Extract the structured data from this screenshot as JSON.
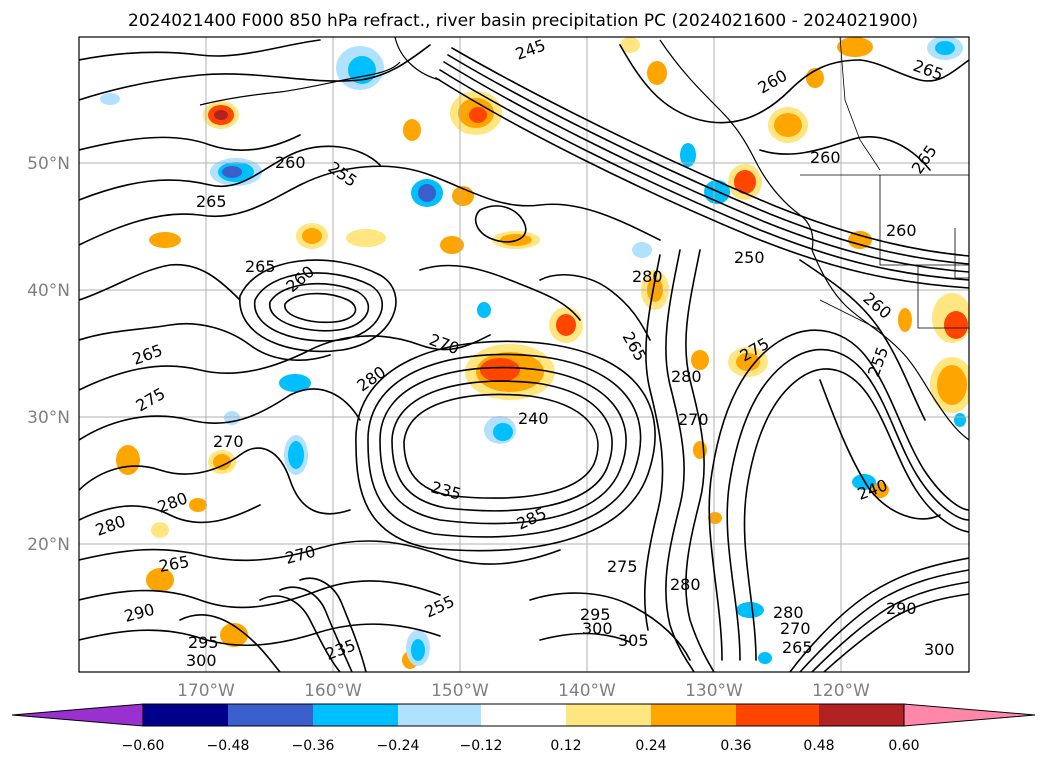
{
  "title": "2024021400 F000 850 hPa refract., river basin precipitation PC (2024021600 - 2024021900)",
  "lat_labels": [
    "50°N",
    "40°N",
    "30°N",
    "20°N"
  ],
  "lon_labels": [
    "170°W",
    "160°W",
    "150°W",
    "140°W",
    "130°W",
    "120°W"
  ],
  "colorbar": {
    "ticks": [
      "−0.60",
      "−0.48",
      "−0.36",
      "−0.24",
      "−0.12",
      "0.12",
      "0.24",
      "0.36",
      "0.48",
      "0.60"
    ],
    "colors": [
      "#9b30d0",
      "#00008b",
      "#3a5fcd",
      "#00bfff",
      "#b0e2ff",
      "#ffffff",
      "#ffe680",
      "#ffa500",
      "#ff4500",
      "#b22222",
      "#ff88aa"
    ]
  },
  "contour_labels": [
    "245",
    "265",
    "260",
    "260",
    "255",
    "260",
    "265",
    "265",
    "260",
    "265",
    "260",
    "250",
    "280",
    "260",
    "265",
    "270",
    "280",
    "275",
    "265",
    "255",
    "240",
    "235",
    "280",
    "270",
    "275",
    "285",
    "270",
    "280",
    "240",
    "280",
    "265",
    "270",
    "280",
    "275",
    "295",
    "300",
    "305",
    "255",
    "235",
    "290",
    "295",
    "300",
    "280",
    "290",
    "270",
    "265",
    "300"
  ],
  "map_features": {
    "contour_color": "#000000",
    "shading_colors": {
      "pos_low": "#ffe680",
      "pos_mid": "#ffa500",
      "pos_high": "#ff4500",
      "pos_max": "#b22222",
      "neg_low": "#b0e2ff",
      "neg_mid": "#00bfff",
      "neg_high": "#3a5fcd"
    }
  }
}
